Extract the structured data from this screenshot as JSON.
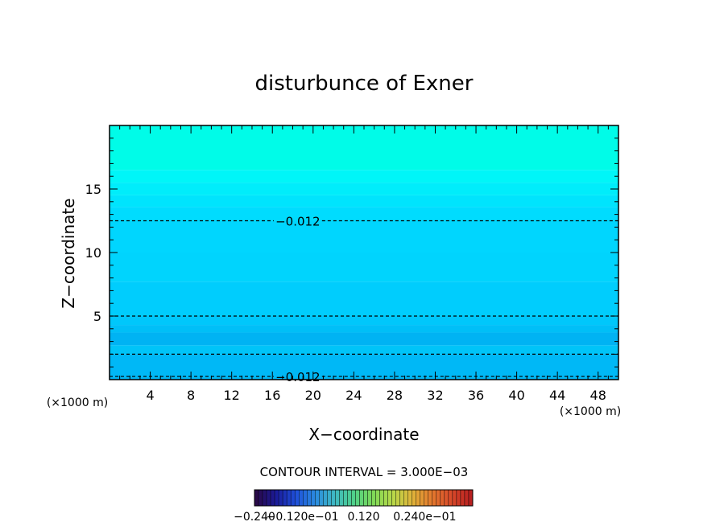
{
  "chart_data": {
    "type": "contour",
    "title": "disturbunce of Exner",
    "xlabel": "X−coordinate",
    "ylabel": "Z−coordinate",
    "x_unit": "(×1000 m)",
    "x_unit_right": "(×1000 m)",
    "x_ticks": [
      4,
      8,
      12,
      16,
      20,
      24,
      28,
      32,
      36,
      40,
      44,
      48
    ],
    "y_ticks": [
      5,
      10,
      15
    ],
    "xlim": [
      0,
      50
    ],
    "ylim": [
      0,
      20
    ],
    "contour_interval_text": "CONTOUR INTERVAL = 3.000E−03",
    "contour_interval": 0.003,
    "contour_lines": [
      {
        "z": 0.25,
        "label": "−0.012",
        "label_x": 18.5,
        "style": "dashed"
      },
      {
        "z": 2.0,
        "label": "",
        "style": "dashed"
      },
      {
        "z": 5.0,
        "label": "",
        "style": "dashed"
      },
      {
        "z": 12.5,
        "label": "−0.012",
        "label_x": 18.5,
        "style": "dashed"
      }
    ],
    "fill_bands": [
      {
        "z0": 0.0,
        "z1": 2.0,
        "color": "#00b8f6"
      },
      {
        "z0": 2.0,
        "z1": 2.7,
        "color": "#00c4f8"
      },
      {
        "z0": 2.7,
        "z1": 3.7,
        "color": "#00b3f3"
      },
      {
        "z0": 3.7,
        "z1": 4.3,
        "color": "#00bff7"
      },
      {
        "z0": 4.3,
        "z1": 5.0,
        "color": "#00c7fb"
      },
      {
        "z0": 5.0,
        "z1": 7.7,
        "color": "#00cdfd"
      },
      {
        "z0": 7.7,
        "z1": 10.0,
        "color": "#00d4fd"
      },
      {
        "z0": 10.0,
        "z1": 12.5,
        "color": "#00d6fe"
      },
      {
        "z0": 12.5,
        "z1": 13.6,
        "color": "#00dcfe"
      },
      {
        "z0": 13.6,
        "z1": 14.5,
        "color": "#00e4fd"
      },
      {
        "z0": 14.5,
        "z1": 15.5,
        "color": "#00edfb"
      },
      {
        "z0": 15.5,
        "z1": 16.5,
        "color": "#00f6f8"
      },
      {
        "z0": 16.5,
        "z1": 20.0,
        "color": "#00fce8"
      }
    ],
    "colorbar_labels": [
      {
        "pos": 0.0,
        "text": "−0.240"
      },
      {
        "pos": 0.22,
        "text": "−0.120e−01"
      },
      {
        "pos": 0.5,
        "text": "0.120"
      },
      {
        "pos": 0.78,
        "text": "0.240e−01"
      }
    ],
    "colorbar_colors": [
      "#2a0a4a",
      "#1a1a9a",
      "#1f4fd9",
      "#2a8ae0",
      "#3fb9c4",
      "#4fd08a",
      "#7ed957",
      "#b7d94a",
      "#e0b43a",
      "#e47a2e",
      "#d94a2a",
      "#b82020"
    ]
  }
}
